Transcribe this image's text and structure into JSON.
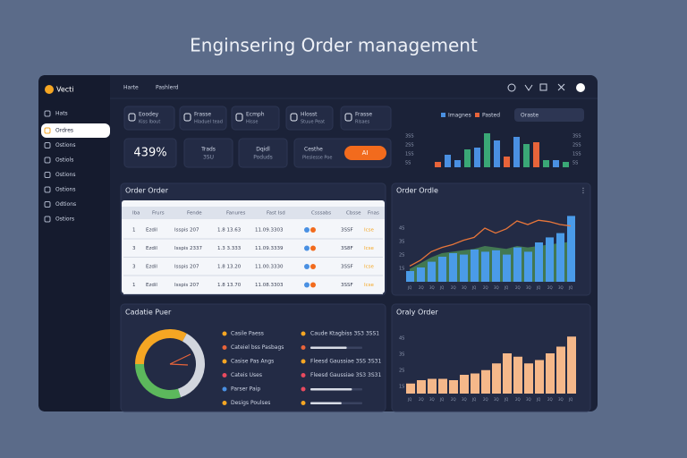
{
  "header": {
    "title": "Enginsering Order management"
  },
  "sidebar": {
    "brand": "Vecti",
    "items": [
      "Hats",
      "Ordres",
      "Ostions",
      "Ostiols",
      "Ostions",
      "Ostions",
      "Odtions",
      "Ostiors"
    ],
    "active": 1
  },
  "topbar": {
    "links": [
      "Harte",
      "Pashlerd"
    ]
  },
  "cards": [
    {
      "title": "Eoodey",
      "sub": "Kiss Ibout"
    },
    {
      "title": "Frasse",
      "sub": "Hladuel tead"
    },
    {
      "title": "Ecmph",
      "sub": "Hisse"
    },
    {
      "title": "Hlosst",
      "sub": "Stuue Peat"
    },
    {
      "title": "Frasse",
      "sub": "Rlsaes"
    }
  ],
  "stats": {
    "big": "439%",
    "cards": [
      {
        "title": "Trads",
        "sub": "3SU"
      },
      {
        "title": "Dqidl",
        "sub": "Poduds"
      }
    ],
    "promo": {
      "title": "Cesthe",
      "sub": "Pleslesse Poe",
      "button": "AI"
    }
  },
  "top_chart": {
    "legend": [
      {
        "name": "Imagnes",
        "color": "#4a90e2"
      },
      {
        "name": "Pasted",
        "color": "#e8643a"
      }
    ],
    "search": "Oraste",
    "y_labels": [
      "3SS",
      "2SS",
      "1SS",
      "5S"
    ],
    "right_labels": [
      "3SS",
      "2SS",
      "1SS",
      "5S"
    ],
    "values": [
      15,
      35,
      20,
      50,
      55,
      95,
      75,
      30,
      85,
      65,
      70,
      20,
      20,
      15
    ],
    "colors": [
      "#e8643a",
      "#4a90e2",
      "#4a90e2",
      "#3aa876",
      "#4a90e2",
      "#3aa876",
      "#4a90e2",
      "#e8643a",
      "#4a90e2",
      "#3aa876",
      "#e8643a",
      "#3aa876",
      "#4a90e2",
      "#3aa876"
    ]
  },
  "table": {
    "title": "Order Order",
    "headers": [
      "Iba",
      "Frurs",
      "Fende",
      "Fanures",
      "Fast Isd",
      "Csssabs",
      "Cbsse",
      "Fnas"
    ],
    "rows": [
      [
        "1",
        "Ezdil",
        "Isspis 207",
        "1.8 13.63",
        "11.09.3303",
        "3SSF",
        "Icse"
      ],
      [
        "3",
        "Ezdil",
        "Isspis 2337",
        "1.3 3.333",
        "11.09.3339",
        "3S8F",
        "Icse"
      ],
      [
        "3",
        "Ezdil",
        "Isspis 207",
        "1.8 13.20",
        "11.00.3330",
        "3SSF",
        "Icse"
      ],
      [
        "1",
        "Ezdil",
        "Isspis 207",
        "1.8 13.70",
        "11.08.3303",
        "3SSF",
        "Icse"
      ]
    ]
  },
  "mixed_chart": {
    "title": "Order Ordle",
    "y_labels": [
      "4S",
      "3S",
      "2S",
      "1S"
    ],
    "x_labels": [
      "JQ",
      "2Q",
      "3Q",
      "JQ",
      "2Q",
      "3Q",
      "JQ",
      "2Q",
      "3Q",
      "JQ",
      "2Q",
      "3Q",
      "JQ",
      "2Q",
      "3Q",
      "JQ"
    ],
    "bars": [
      15,
      20,
      28,
      35,
      40,
      38,
      45,
      42,
      44,
      38,
      48,
      42,
      55,
      62,
      68,
      92
    ],
    "line": [
      22,
      30,
      42,
      48,
      52,
      58,
      62,
      75,
      68,
      74,
      85,
      80,
      86,
      84,
      80,
      78
    ],
    "area": [
      18,
      26,
      34,
      40,
      42,
      44,
      46,
      50,
      48,
      46,
      50,
      48,
      50,
      52,
      54,
      56
    ],
    "bar_color": "#4a9be8",
    "line_color": "#e8763a",
    "area_color": "#5cb85c"
  },
  "status": {
    "title": "Cadatie Puer",
    "donut": [
      {
        "value": 33,
        "color": "#f5a623"
      },
      {
        "value": 37,
        "color": "#d2d6de"
      },
      {
        "value": 30,
        "color": "#5cb85c"
      }
    ],
    "left_items": [
      {
        "label": "Casile Paess",
        "color": "#f5a623"
      },
      {
        "label": "Cateiel bss Pasbags",
        "color": "#e8643a"
      },
      {
        "label": "Casise Pas Angs",
        "color": "#f5a623"
      },
      {
        "label": "Cateis Uses",
        "color": "#e84a5f"
      },
      {
        "label": "Parser Paip",
        "color": "#4a90e2"
      },
      {
        "label": "Desigs Poulses",
        "color": "#f5a623"
      }
    ],
    "right_items": [
      {
        "label": "Caude Ktagbiss 3S3 3SS1",
        "color": "#f5a623"
      },
      {
        "progress": 70,
        "color": "#e8643a"
      },
      {
        "label": "Fleesd Gaussiae 3SS 3S31",
        "color": "#f5a623"
      },
      {
        "label": "Fleesd Gaussiae 3S3 3S31",
        "color": "#e84a5f"
      },
      {
        "progress": 80,
        "color": "#e84a5f"
      },
      {
        "progress": 60,
        "color": "#f5a623"
      }
    ]
  },
  "bottom_chart": {
    "title": "Oraly Order",
    "color": "#f5b88a",
    "y_labels": [
      "4S",
      "3S",
      "2S",
      "1S"
    ],
    "x_labels": [
      "JQ",
      "2Q",
      "3Q",
      "JQ",
      "2Q",
      "3Q",
      "JQ",
      "2Q",
      "3Q",
      "JQ",
      "2Q",
      "3Q",
      "JQ",
      "2Q",
      "3Q",
      "JQ"
    ],
    "bars": [
      15,
      20,
      22,
      22,
      20,
      28,
      30,
      35,
      45,
      60,
      55,
      45,
      50,
      60,
      70,
      85
    ]
  }
}
